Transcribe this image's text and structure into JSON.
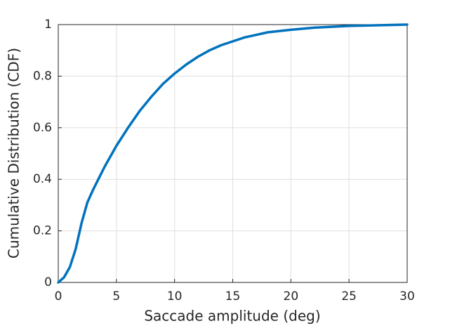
{
  "chart_data": {
    "type": "line",
    "xlabel": "Saccade amplitude (deg)",
    "ylabel": "Cumulative Distribution (CDF)",
    "x": [
      0,
      0.5,
      1,
      1.5,
      2,
      2.5,
      3,
      4,
      5,
      6,
      7,
      8,
      9,
      10,
      11,
      12,
      13,
      14,
      15,
      16,
      17,
      18,
      20,
      22,
      25,
      28,
      30
    ],
    "series": [
      {
        "color": "#0072bd",
        "values": [
          0,
          0.02,
          0.06,
          0.13,
          0.23,
          0.31,
          0.36,
          0.45,
          0.53,
          0.6,
          0.665,
          0.72,
          0.77,
          0.81,
          0.845,
          0.875,
          0.9,
          0.92,
          0.935,
          0.95,
          0.96,
          0.97,
          0.98,
          0.988,
          0.995,
          0.998,
          1
        ]
      }
    ],
    "xlim": [
      0,
      30
    ],
    "xticks": [
      0,
      5,
      10,
      15,
      20,
      25,
      30
    ],
    "ylim": [
      0,
      1
    ],
    "yticks": [
      0,
      0.2,
      0.4,
      0.6,
      0.8,
      1
    ],
    "grid": true
  }
}
